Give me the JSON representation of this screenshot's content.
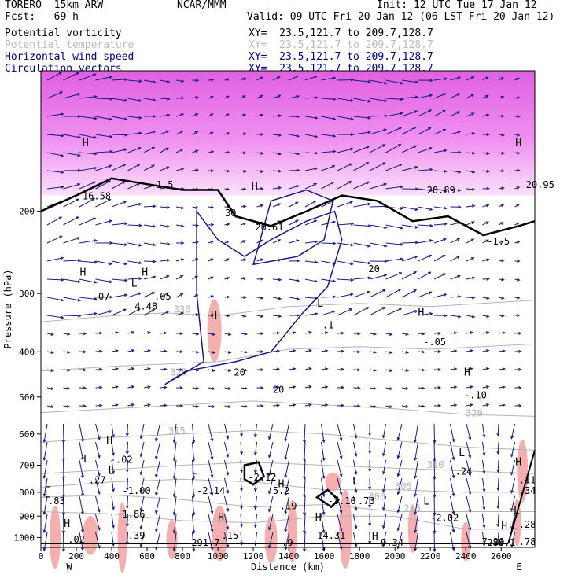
{
  "header": {
    "model": "TORERO  15km ARW",
    "org": "NCAR/MMM",
    "init": "Init: 12 UTC Tue 17 Jan 12",
    "fcst": "Fcst:   69 h",
    "valid": "Valid: 09 UTC Fri 20 Jan 12 (06 LST Fri 20 Jan 12)",
    "fields": [
      {
        "name": "Potential vorticity",
        "xy": "XY=  23.5,121.7 to 209.7,128.7",
        "color": "#000000"
      },
      {
        "name": "Potential temperature",
        "xy": "XY=  23.5,121.7 to 209.7,128.7",
        "color": "#bbbbbb"
      },
      {
        "name": "Horizontal wind speed",
        "xy": "XY=  23.5,121.7 to 209.7,128.7",
        "color": "#000080"
      },
      {
        "name": "Circulation vectors",
        "xy": "XY=  23.5,121.7 to 209.7,128.7",
        "color": "#000080"
      }
    ]
  },
  "colors": {
    "pv": "#000000",
    "theta": "#b4b4b4",
    "wind": "#1a1a80",
    "vectors": "#1a1a80",
    "pv_shade": "#f4a6a6",
    "upper_shade": "#e060e0"
  },
  "chart_data": {
    "type": "cross-section",
    "xlabel": "Distance (km)",
    "ylabel": "Pressure (hPa)",
    "xlim": [
      0,
      2790
    ],
    "ylim": [
      100,
      1050
    ],
    "y_log": true,
    "xticks": [
      0,
      200,
      400,
      600,
      800,
      1000,
      1200,
      1400,
      1600,
      1800,
      2000,
      2200,
      2400,
      2600
    ],
    "yticks": [
      200,
      300,
      400,
      500,
      600,
      700,
      800,
      900,
      1000
    ],
    "end_labels": {
      "left": "W",
      "right": "E"
    },
    "theta_lines": [
      {
        "label": "330",
        "pts": [
          [
            0,
            345
          ],
          [
            400,
            335
          ],
          [
            700,
            330
          ],
          [
            1000,
            335
          ],
          [
            1400,
            320
          ],
          [
            1800,
            315
          ],
          [
            2200,
            320
          ],
          [
            2790,
            310
          ]
        ],
        "label_at": [
          750,
          330
        ]
      },
      {
        "label": "325",
        "pts": [
          [
            0,
            440
          ],
          [
            400,
            430
          ],
          [
            700,
            425
          ],
          [
            1000,
            420
          ],
          [
            1400,
            395
          ],
          [
            1800,
            390
          ],
          [
            2200,
            395
          ],
          [
            2790,
            385
          ]
        ],
        "label_at": [
          730,
          450
        ]
      },
      {
        "label": "320",
        "pts": [
          [
            0,
            540
          ],
          [
            400,
            530
          ],
          [
            800,
            520
          ],
          [
            1200,
            510
          ],
          [
            1600,
            520
          ],
          [
            2000,
            530
          ],
          [
            2400,
            545
          ],
          [
            2790,
            550
          ]
        ],
        "label_at": [
          2400,
          550
        ]
      },
      {
        "label": "315",
        "pts": [
          [
            0,
            625
          ],
          [
            400,
            610
          ],
          [
            800,
            600
          ],
          [
            1200,
            590
          ],
          [
            1600,
            600
          ],
          [
            2000,
            620
          ],
          [
            2400,
            640
          ],
          [
            2790,
            650
          ]
        ],
        "label_at": [
          720,
          600
        ]
      },
      {
        "label": "310",
        "pts": [
          [
            0,
            730
          ],
          [
            400,
            715
          ],
          [
            800,
            700
          ],
          [
            1200,
            690
          ],
          [
            1600,
            700
          ],
          [
            2000,
            710
          ],
          [
            2400,
            720
          ],
          [
            2790,
            730
          ]
        ],
        "label_at": [
          2180,
          710
        ]
      },
      {
        "label": "305",
        "pts": [
          [
            0,
            780
          ],
          [
            400,
            760
          ],
          [
            800,
            750
          ],
          [
            1200,
            760
          ],
          [
            1600,
            790
          ],
          [
            2000,
            790
          ],
          [
            2400,
            800
          ],
          [
            2790,
            800
          ]
        ],
        "label_at": [
          2000,
          790
        ]
      },
      {
        "label": "300",
        "pts": [
          [
            0,
            820
          ],
          [
            400,
            810
          ],
          [
            800,
            830
          ],
          [
            1200,
            860
          ],
          [
            1600,
            850
          ],
          [
            2000,
            880
          ],
          [
            2400,
            880
          ],
          [
            2790,
            880
          ]
        ],
        "label_at": [
          1850,
          830
        ]
      },
      {
        "label": "295",
        "pts": [
          [
            0,
            880
          ],
          [
            400,
            890
          ],
          [
            800,
            920
          ],
          [
            1200,
            930
          ],
          [
            1600,
            900
          ],
          [
            2000,
            900
          ],
          [
            2400,
            960
          ],
          [
            2790,
            960
          ]
        ],
        "label_at": [
          2050,
          880
        ]
      }
    ],
    "pv_values": [
      {
        "text": "16.58",
        "x": 235,
        "p": 180
      },
      {
        "text": "-1.5",
        "x": 620,
        "p": 170
      },
      {
        "text": "20.61",
        "x": 1210,
        "p": 210
      },
      {
        "text": "20.89",
        "x": 2180,
        "p": 175
      },
      {
        "text": "20.95",
        "x": 2740,
        "p": 170
      },
      {
        "text": "-1.5",
        "x": 2520,
        "p": 225
      },
      {
        "text": "-.07",
        "x": 260,
        "p": 295
      },
      {
        "text": ".05",
        "x": 640,
        "p": 295
      },
      {
        "text": "4.48",
        "x": 530,
        "p": 310
      },
      {
        "text": ".1",
        "x": 1590,
        "p": 340
      },
      {
        "text": "-.05",
        "x": 2160,
        "p": 370
      },
      {
        "text": "-.10",
        "x": 2390,
        "p": 480
      },
      {
        "text": "-.02",
        "x": 390,
        "p": 660
      },
      {
        "text": ".27",
        "x": 270,
        "p": 730
      },
      {
        "text": "-1.00",
        "x": 460,
        "p": 770
      },
      {
        "text": "-2.14",
        "x": 880,
        "p": 770
      },
      {
        "text": "-2.12",
        "x": 1170,
        "p": 720
      },
      {
        "text": "5.2",
        "x": 1310,
        "p": 770
      },
      {
        "text": "-3.10",
        "x": 1620,
        "p": 810
      },
      {
        "text": ".73",
        "x": 1790,
        "p": 810
      },
      {
        "text": "-2.02",
        "x": 2200,
        "p": 880
      },
      {
        "text": ".24",
        "x": 2340,
        "p": 700
      },
      {
        "text": ".11",
        "x": 2700,
        "p": 730
      },
      {
        "text": ".34",
        "x": 2700,
        "p": 770
      },
      {
        "text": ".83",
        "x": 40,
        "p": 810
      },
      {
        "text": "1.86",
        "x": 460,
        "p": 865
      },
      {
        "text": ".19",
        "x": 1350,
        "p": 830
      },
      {
        "text": "-.39",
        "x": 460,
        "p": 960
      },
      {
        "text": ".15",
        "x": 1020,
        "p": 960
      },
      {
        "text": "14.31",
        "x": 1560,
        "p": 960
      },
      {
        "text": "-.02",
        "x": 120,
        "p": 980
      },
      {
        "text": ".28",
        "x": 2700,
        "p": 910
      },
      {
        "text": "7.20",
        "x": 2490,
        "p": 990
      },
      {
        "text": ".78",
        "x": 2700,
        "p": 990
      },
      {
        "text": "9.34",
        "x": 1920,
        "p": 1040
      },
      {
        "text": ".9",
        "x": 1360,
        "p": 1040
      },
      {
        "text": "291.7",
        "x": 850,
        "p": 1080
      },
      {
        "text": "288.1",
        "x": 2520,
        "p": 1070
      }
    ],
    "wind_labels": [
      {
        "text": "20",
        "x": 1090,
        "p": 450
      },
      {
        "text": "20",
        "x": 1310,
        "p": 490
      },
      {
        "text": "20",
        "x": 1850,
        "p": 270
      },
      {
        "text": "30",
        "x": 1040,
        "p": 205
      }
    ],
    "max_min_marks": [
      {
        "kind": "H",
        "x": 235,
        "p": 145
      },
      {
        "kind": "H",
        "x": 1190,
        "p": 180
      },
      {
        "kind": "H",
        "x": 2680,
        "p": 145
      },
      {
        "kind": "H",
        "x": 220,
        "p": 275
      },
      {
        "kind": "H",
        "x": 570,
        "p": 275
      },
      {
        "kind": "L",
        "x": 510,
        "p": 290
      },
      {
        "kind": "H",
        "x": 960,
        "p": 340
      },
      {
        "kind": "L",
        "x": 1560,
        "p": 320
      },
      {
        "kind": "H",
        "x": 2130,
        "p": 335
      },
      {
        "kind": "H",
        "x": 2390,
        "p": 450
      },
      {
        "kind": "H",
        "x": 370,
        "p": 630
      },
      {
        "kind": "L",
        "x": 240,
        "p": 690
      },
      {
        "kind": "L",
        "x": 2360,
        "p": 670
      },
      {
        "kind": "H",
        "x": 2680,
        "p": 700
      },
      {
        "kind": "L",
        "x": 380,
        "p": 730
      },
      {
        "kind": "L",
        "x": 850,
        "p": 730
      },
      {
        "kind": "L",
        "x": 1290,
        "p": 730
      },
      {
        "kind": "L",
        "x": 1760,
        "p": 770
      },
      {
        "kind": "L",
        "x": 20,
        "p": 780
      },
      {
        "kind": "H",
        "x": 1340,
        "p": 780
      },
      {
        "kind": "L",
        "x": 20,
        "p": 820
      },
      {
        "kind": "L",
        "x": 2160,
        "p": 850
      },
      {
        "kind": "H",
        "x": 1000,
        "p": 920
      },
      {
        "kind": "H",
        "x": 1550,
        "p": 920
      },
      {
        "kind": "H",
        "x": 130,
        "p": 950
      },
      {
        "kind": "H",
        "x": 2600,
        "p": 960
      },
      {
        "kind": "L",
        "x": 2660,
        "p": 960
      },
      {
        "kind": "L",
        "x": 2670,
        "p": 890
      },
      {
        "kind": "H",
        "x": 1870,
        "p": 1010
      }
    ]
  }
}
